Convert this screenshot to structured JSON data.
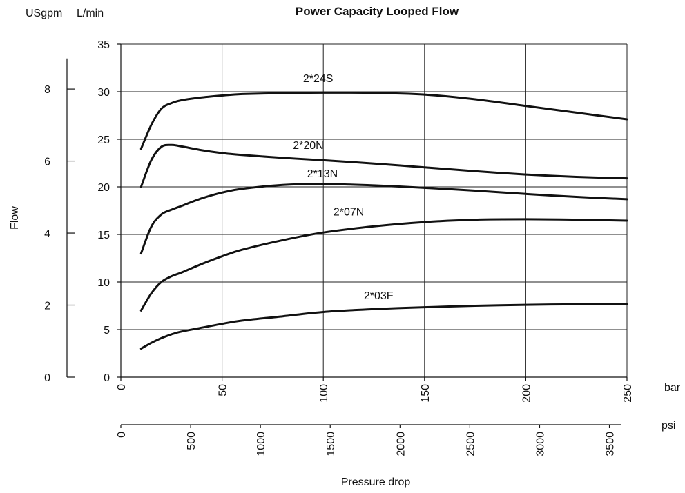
{
  "chart_data": {
    "type": "line",
    "title": "Power Capacity Looped Flow",
    "ylabel": "Flow",
    "xlabel": "Pressure drop",
    "y_units": {
      "left": "USgpm",
      "right": "L/min"
    },
    "x_units": {
      "primary": "bar",
      "secondary": "psi"
    },
    "xlim": [
      0,
      250
    ],
    "ylim": [
      0,
      35
    ],
    "x_ticks_bar": [
      "0",
      "50",
      "100",
      "150",
      "200",
      "250"
    ],
    "x_ticks_psi": [
      "0",
      "500",
      "1000",
      "1500",
      "2000",
      "2500",
      "3000",
      "3500"
    ],
    "y_ticks_lmin": [
      "0",
      "5",
      "10",
      "15",
      "20",
      "25",
      "30",
      "35"
    ],
    "y_ticks_usgpm": [
      "0",
      "2",
      "4",
      "6",
      "8"
    ],
    "grid": true,
    "series": [
      {
        "name": "2*24S",
        "points": [
          [
            10,
            24
          ],
          [
            15,
            26.5
          ],
          [
            20,
            28.2
          ],
          [
            25,
            28.8
          ],
          [
            30,
            29.1
          ],
          [
            40,
            29.4
          ],
          [
            50,
            29.6
          ],
          [
            60,
            29.75
          ],
          [
            80,
            29.85
          ],
          [
            100,
            29.9
          ],
          [
            125,
            29.88
          ],
          [
            150,
            29.7
          ],
          [
            175,
            29.2
          ],
          [
            200,
            28.5
          ],
          [
            225,
            27.8
          ],
          [
            250,
            27.1
          ]
        ]
      },
      {
        "name": "2*20N",
        "points": [
          [
            10,
            20
          ],
          [
            15,
            22.8
          ],
          [
            20,
            24.2
          ],
          [
            25,
            24.4
          ],
          [
            30,
            24.25
          ],
          [
            40,
            23.85
          ],
          [
            50,
            23.55
          ],
          [
            60,
            23.35
          ],
          [
            80,
            23.05
          ],
          [
            100,
            22.8
          ],
          [
            125,
            22.45
          ],
          [
            150,
            22.05
          ],
          [
            175,
            21.65
          ],
          [
            200,
            21.3
          ],
          [
            225,
            21.05
          ],
          [
            250,
            20.9
          ]
        ]
      },
      {
        "name": "2*13N",
        "points": [
          [
            10,
            13
          ],
          [
            15,
            15.8
          ],
          [
            20,
            17.1
          ],
          [
            25,
            17.6
          ],
          [
            30,
            18
          ],
          [
            40,
            18.8
          ],
          [
            50,
            19.4
          ],
          [
            60,
            19.8
          ],
          [
            80,
            20.2
          ],
          [
            100,
            20.3
          ],
          [
            125,
            20.15
          ],
          [
            150,
            19.9
          ],
          [
            175,
            19.6
          ],
          [
            200,
            19.25
          ],
          [
            225,
            18.95
          ],
          [
            250,
            18.7
          ]
        ]
      },
      {
        "name": "2*07N",
        "points": [
          [
            10,
            7
          ],
          [
            15,
            8.8
          ],
          [
            20,
            10
          ],
          [
            25,
            10.6
          ],
          [
            30,
            11
          ],
          [
            40,
            11.9
          ],
          [
            50,
            12.7
          ],
          [
            60,
            13.4
          ],
          [
            80,
            14.4
          ],
          [
            100,
            15.2
          ],
          [
            125,
            15.85
          ],
          [
            150,
            16.3
          ],
          [
            175,
            16.55
          ],
          [
            200,
            16.6
          ],
          [
            225,
            16.55
          ],
          [
            250,
            16.45
          ]
        ]
      },
      {
        "name": "2*03F",
        "points": [
          [
            10,
            3
          ],
          [
            15,
            3.6
          ],
          [
            20,
            4.1
          ],
          [
            25,
            4.5
          ],
          [
            30,
            4.8
          ],
          [
            40,
            5.2
          ],
          [
            50,
            5.6
          ],
          [
            60,
            5.95
          ],
          [
            80,
            6.4
          ],
          [
            100,
            6.85
          ],
          [
            125,
            7.15
          ],
          [
            150,
            7.35
          ],
          [
            175,
            7.5
          ],
          [
            200,
            7.6
          ],
          [
            225,
            7.65
          ],
          [
            250,
            7.65
          ]
        ]
      }
    ]
  }
}
